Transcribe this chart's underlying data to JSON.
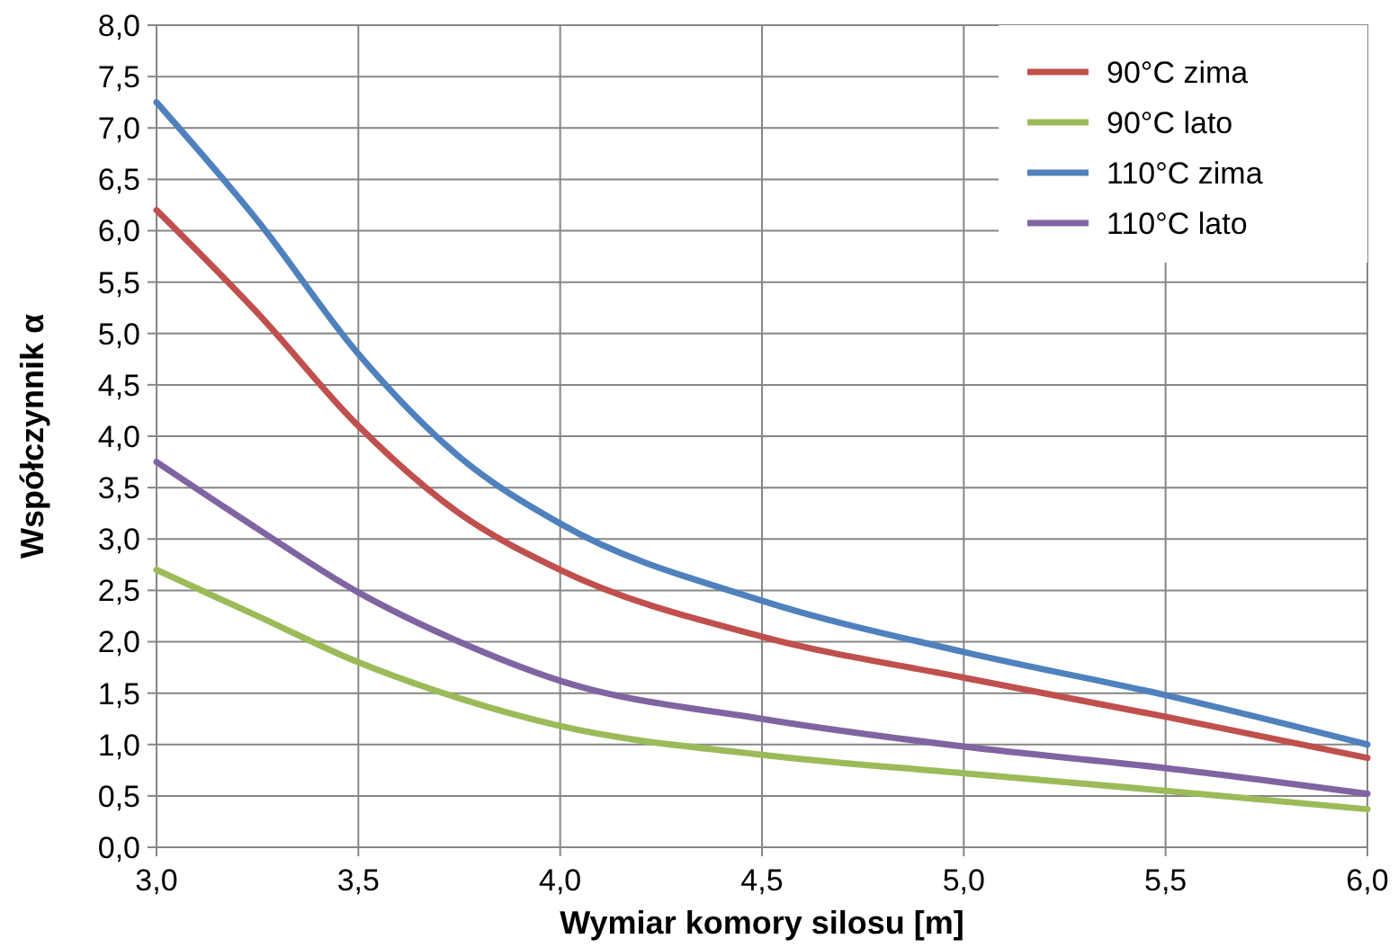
{
  "chart_data": {
    "type": "line",
    "xlabel": "Wymiar komory silosu [m]",
    "ylabel": "Współczynnik α",
    "x": [
      3.0,
      3.25,
      3.5,
      3.75,
      4.0,
      4.5,
      5.0,
      5.5,
      6.0
    ],
    "series": [
      {
        "name": "90°C zima",
        "color": "#c0504d",
        "values": [
          6.2,
          5.2,
          4.1,
          3.25,
          2.7,
          2.05,
          1.65,
          1.27,
          0.87
        ]
      },
      {
        "name": "90°C lato",
        "color": "#9bbb59",
        "values": [
          2.7,
          2.25,
          1.8,
          1.45,
          1.18,
          0.9,
          0.72,
          0.55,
          0.37
        ]
      },
      {
        "name": "110°C zima",
        "color": "#4f81bd",
        "values": [
          7.25,
          6.1,
          4.8,
          3.8,
          3.15,
          2.4,
          1.9,
          1.48,
          1.0
        ]
      },
      {
        "name": "110°C lato",
        "color": "#8064a2",
        "values": [
          3.75,
          3.1,
          2.48,
          2.0,
          1.62,
          1.25,
          0.98,
          0.77,
          0.52
        ]
      }
    ],
    "xlim": [
      3,
      6
    ],
    "xticks": [
      {
        "value": 3,
        "label": "3,0"
      },
      {
        "value": 3.5,
        "label": "3,5"
      },
      {
        "value": 4,
        "label": "4,0"
      },
      {
        "value": 4.5,
        "label": "4,5"
      },
      {
        "value": 5,
        "label": "5,0"
      },
      {
        "value": 5.5,
        "label": "5,5"
      },
      {
        "value": 6,
        "label": "6,0"
      }
    ],
    "ylim": [
      0,
      8
    ],
    "yticks": [
      {
        "value": 0,
        "label": "0,0"
      },
      {
        "value": 0.5,
        "label": "0,5"
      },
      {
        "value": 1,
        "label": "1,0"
      },
      {
        "value": 1.5,
        "label": "1,5"
      },
      {
        "value": 2,
        "label": "2,0"
      },
      {
        "value": 2.5,
        "label": "2,5"
      },
      {
        "value": 3,
        "label": "3,0"
      },
      {
        "value": 3.5,
        "label": "3,5"
      },
      {
        "value": 4,
        "label": "4,0"
      },
      {
        "value": 4.5,
        "label": "4,5"
      },
      {
        "value": 5,
        "label": "5,0"
      },
      {
        "value": 5.5,
        "label": "5,5"
      },
      {
        "value": 6,
        "label": "6,0"
      },
      {
        "value": 6.5,
        "label": "6,5"
      },
      {
        "value": 7,
        "label": "7,0"
      },
      {
        "value": 7.5,
        "label": "7,5"
      },
      {
        "value": 8,
        "label": "8,0"
      }
    ],
    "grid": true,
    "legend": "top right",
    "line_style": "solid",
    "marker": "none"
  }
}
